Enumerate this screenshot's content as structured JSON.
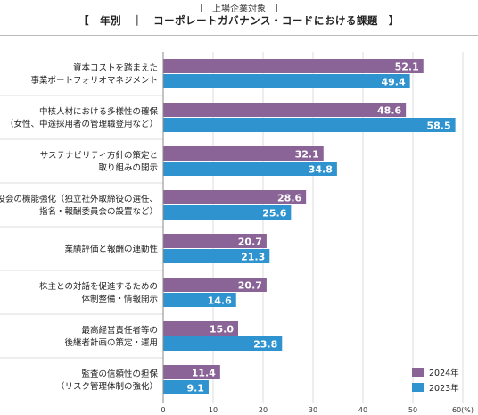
{
  "header": {
    "subtitle": "［　上場企業対象　］",
    "title": "【　年別　｜　コーポレートガバナンス・コードにおける課題　】"
  },
  "chart_data": {
    "type": "bar",
    "orientation": "horizontal",
    "categories": [
      [
        "資本コストを踏まえた",
        "事業ポートフォリオマネジメント"
      ],
      [
        "中核人材における多様性の確保",
        "（女性、中途採用者の管理職登用など）"
      ],
      [
        "サステナビリティ方針の策定と",
        "取り組みの開示"
      ],
      [
        "取締役会の機能強化（独立社外取締役の選任、",
        "指名・報酬委員会の設置など）"
      ],
      [
        "業績評価と報酬の連動性"
      ],
      [
        "株主との対話を促進するための",
        "体制整備・情報開示"
      ],
      [
        "最高経営責任者等の",
        "後継者計画の策定・運用"
      ],
      [
        "監査の信頼性の担保",
        "（リスク管理体制の強化）"
      ]
    ],
    "series": [
      {
        "name": "2024年",
        "color": "#8a6496",
        "values": [
          52.1,
          48.6,
          32.1,
          28.6,
          20.7,
          20.7,
          15.0,
          11.4
        ]
      },
      {
        "name": "2023年",
        "color": "#2e93cf",
        "values": [
          49.4,
          58.5,
          34.8,
          25.6,
          21.3,
          14.6,
          23.8,
          9.1
        ]
      }
    ],
    "xlim": [
      0,
      60
    ],
    "ticks": [
      0,
      10,
      20,
      30,
      40,
      50,
      60
    ],
    "x_unit": "(%)",
    "legend_position": "bottom-right",
    "grid": true
  }
}
